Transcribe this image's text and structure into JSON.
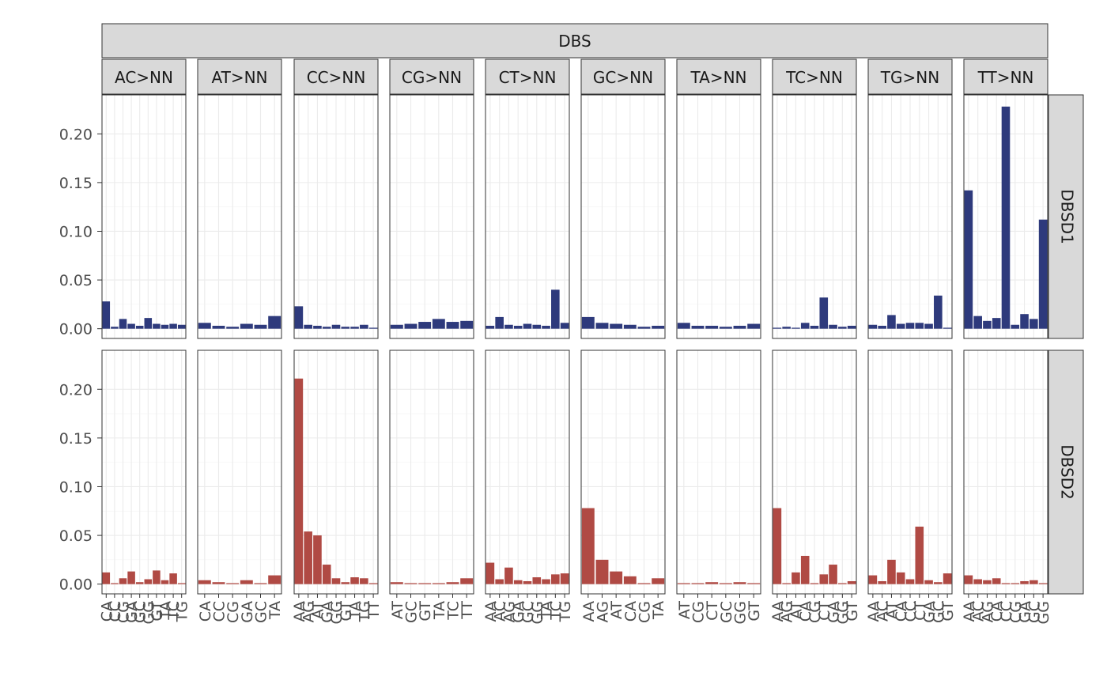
{
  "chart_data": {
    "type": "bar",
    "title": "DBS",
    "xlabel": "",
    "ylabel": "",
    "ylim": [
      -0.01,
      0.24
    ],
    "yticks": [
      0.0,
      0.05,
      0.1,
      0.15,
      0.2
    ],
    "ytick_labels": [
      "0.00",
      "0.05",
      "0.10",
      "0.15",
      "0.20"
    ],
    "colors": {
      "DBSD1": "#2e3a7c",
      "DBSD2": "#b04a44"
    },
    "panels": [
      {
        "label": "AC>NN",
        "categories": [
          "CA",
          "CC",
          "CG",
          "GA",
          "GC",
          "GG",
          "GT",
          "TA",
          "TC",
          "TG"
        ]
      },
      {
        "label": "AT>NN",
        "categories": [
          "CA",
          "CC",
          "CG",
          "GA",
          "GC",
          "TA"
        ]
      },
      {
        "label": "CC>NN",
        "categories": [
          "AA",
          "AG",
          "AT",
          "GA",
          "GG",
          "GT",
          "TA",
          "TG",
          "TT"
        ]
      },
      {
        "label": "CG>NN",
        "categories": [
          "AT",
          "GC",
          "GT",
          "TA",
          "TC",
          "TT"
        ]
      },
      {
        "label": "CT>NN",
        "categories": [
          "AA",
          "AC",
          "AG",
          "GA",
          "GC",
          "GG",
          "TA",
          "TC",
          "TG"
        ]
      },
      {
        "label": "GC>NN",
        "categories": [
          "AA",
          "AG",
          "AT",
          "CA",
          "CG",
          "TA"
        ]
      },
      {
        "label": "TA>NN",
        "categories": [
          "AT",
          "CG",
          "CT",
          "GC",
          "GG",
          "GT"
        ]
      },
      {
        "label": "TC>NN",
        "categories": [
          "AA",
          "AG",
          "AT",
          "CA",
          "CG",
          "CT",
          "GA",
          "GG",
          "GT"
        ]
      },
      {
        "label": "TG>NN",
        "categories": [
          "AA",
          "AC",
          "AT",
          "CA",
          "CC",
          "CT",
          "GA",
          "GC",
          "GT"
        ]
      },
      {
        "label": "TT>NN",
        "categories": [
          "AA",
          "AC",
          "AG",
          "CA",
          "CC",
          "CG",
          "GA",
          "GC",
          "GG"
        ]
      }
    ],
    "series": [
      {
        "name": "DBSD1",
        "values": [
          [
            0.028,
            0.002,
            0.01,
            0.005,
            0.003,
            0.011,
            0.005,
            0.004,
            0.005,
            0.004
          ],
          [
            0.006,
            0.003,
            0.002,
            0.005,
            0.004,
            0.013
          ],
          [
            0.023,
            0.004,
            0.003,
            0.002,
            0.004,
            0.002,
            0.002,
            0.004,
            0.001
          ],
          [
            0.004,
            0.005,
            0.007,
            0.01,
            0.007,
            0.008
          ],
          [
            0.003,
            0.012,
            0.004,
            0.003,
            0.005,
            0.004,
            0.003,
            0.04,
            0.006
          ],
          [
            0.012,
            0.006,
            0.005,
            0.004,
            0.002,
            0.003
          ],
          [
            0.006,
            0.003,
            0.003,
            0.002,
            0.003,
            0.005
          ],
          [
            0.001,
            0.002,
            0.001,
            0.006,
            0.003,
            0.032,
            0.004,
            0.002,
            0.003
          ],
          [
            0.004,
            0.003,
            0.014,
            0.005,
            0.006,
            0.006,
            0.005,
            0.034,
            0.001
          ],
          [
            0.142,
            0.013,
            0.008,
            0.011,
            0.228,
            0.004,
            0.015,
            0.01,
            0.112
          ]
        ]
      },
      {
        "name": "DBSD2",
        "values": [
          [
            0.012,
            0.001,
            0.006,
            0.013,
            0.002,
            0.005,
            0.014,
            0.004,
            0.011,
            0.001
          ],
          [
            0.004,
            0.002,
            0.001,
            0.004,
            0.001,
            0.009
          ],
          [
            0.211,
            0.054,
            0.05,
            0.02,
            0.006,
            0.002,
            0.007,
            0.006,
            0.001
          ],
          [
            0.002,
            0.001,
            0.001,
            0.001,
            0.002,
            0.006
          ],
          [
            0.022,
            0.005,
            0.017,
            0.004,
            0.003,
            0.007,
            0.005,
            0.01,
            0.011
          ],
          [
            0.078,
            0.025,
            0.013,
            0.008,
            0.001,
            0.006
          ],
          [
            0.001,
            0.001,
            0.002,
            0.001,
            0.002,
            0.001
          ],
          [
            0.078,
            0.001,
            0.012,
            0.029,
            0.001,
            0.01,
            0.02,
            0.001,
            0.003
          ],
          [
            0.009,
            0.003,
            0.025,
            0.012,
            0.005,
            0.059,
            0.004,
            0.002,
            0.011
          ],
          [
            0.009,
            0.005,
            0.004,
            0.006,
            0.001,
            0.001,
            0.003,
            0.004,
            0.001
          ]
        ]
      }
    ]
  }
}
